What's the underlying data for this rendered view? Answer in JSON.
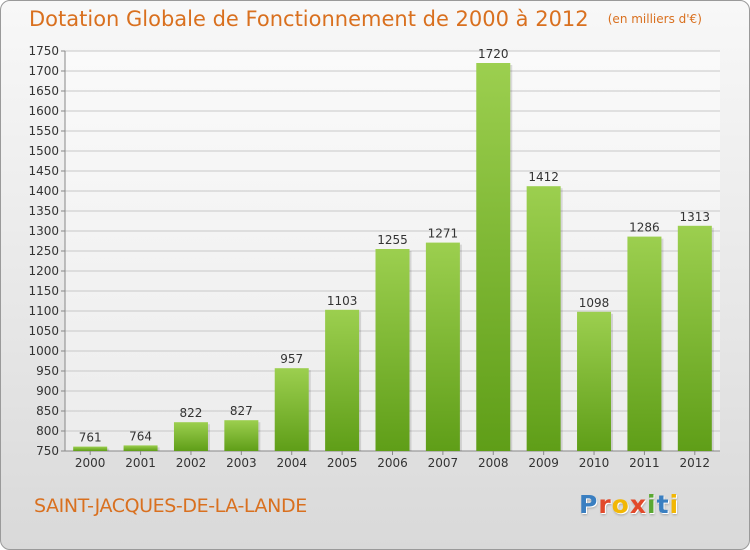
{
  "header": {
    "title": "Dotation Globale de Fonctionnement de 2000 à 2012",
    "unit": "(en milliers d'€)"
  },
  "footer": {
    "commune": "SAINT-JACQUES-DE-LA-LANDE",
    "logo": "Proxiti",
    "logo_colors": [
      "#3a7fc1",
      "#e2492a",
      "#f2b705",
      "#e2492a",
      "#5aa832",
      "#3a7fc1",
      "#f2b705"
    ]
  },
  "colors": {
    "title": "#d9701f",
    "bar_top": "#9ccf4f",
    "bar_bottom": "#5f9e18",
    "grid": "#c8c8c8",
    "axis_text": "#333333"
  },
  "chart_data": {
    "type": "bar",
    "categories": [
      "2000",
      "2001",
      "2002",
      "2003",
      "2004",
      "2005",
      "2006",
      "2007",
      "2008",
      "2009",
      "2010",
      "2011",
      "2012"
    ],
    "values": [
      761,
      764,
      822,
      827,
      957,
      1103,
      1255,
      1271,
      1720,
      1412,
      1098,
      1286,
      1313
    ],
    "ylim": [
      750,
      1750
    ],
    "ytick_step": 50,
    "grid": true,
    "data_labels": true
  }
}
